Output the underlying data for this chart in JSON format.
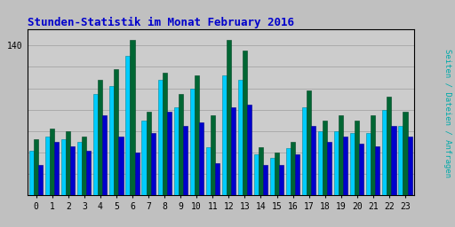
{
  "title": "Stunden-Statistik im Monat February 2016",
  "title_color": "#0000cc",
  "title_fontsize": 9,
  "ylabel_right": "Seiten / Dateien / Anfragen",
  "hours": [
    0,
    1,
    2,
    3,
    4,
    5,
    6,
    7,
    8,
    9,
    10,
    11,
    12,
    13,
    14,
    15,
    16,
    17,
    18,
    19,
    20,
    21,
    22,
    23
  ],
  "seiten": [
    42,
    55,
    52,
    50,
    95,
    102,
    130,
    70,
    108,
    82,
    100,
    45,
    112,
    108,
    38,
    35,
    44,
    82,
    60,
    60,
    58,
    58,
    80,
    65
  ],
  "dateien": [
    52,
    62,
    60,
    55,
    108,
    118,
    145,
    78,
    115,
    95,
    112,
    75,
    145,
    135,
    45,
    40,
    50,
    98,
    70,
    75,
    70,
    75,
    92,
    78
  ],
  "anfragen": [
    28,
    50,
    46,
    42,
    75,
    55,
    40,
    58,
    78,
    65,
    68,
    30,
    82,
    85,
    28,
    28,
    38,
    65,
    50,
    55,
    48,
    46,
    65,
    55
  ],
  "color_seiten": "#00ccff",
  "color_dateien": "#006633",
  "color_anfragen": "#0000cc",
  "ylim_max": 155,
  "ytick_val": 140,
  "bg_color": "#c0c0c0",
  "plot_bg": "#cccccc",
  "bar_width": 0.28,
  "grid_color": "#aaaaaa",
  "right_label_color": "#00aaaa"
}
